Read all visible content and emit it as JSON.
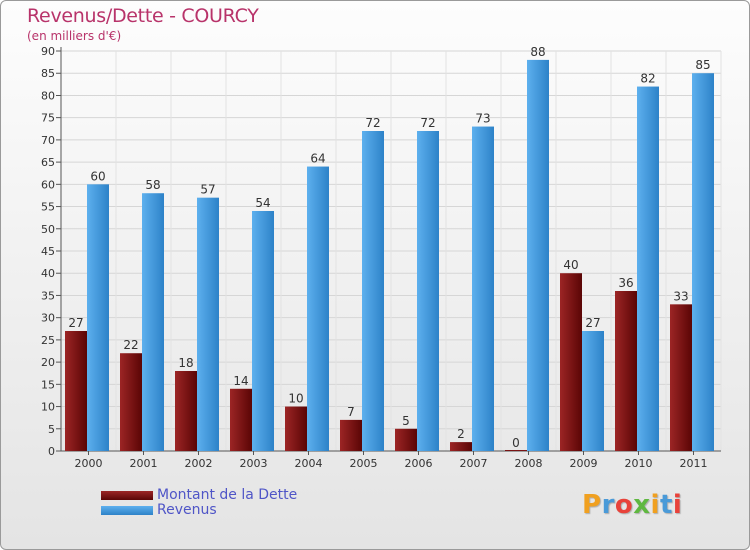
{
  "title": "Revenus/Dette - COURCY",
  "subtitle": "(en milliers d'€)",
  "logo": {
    "letters": [
      "P",
      "r",
      "o",
      "x",
      "i",
      "t",
      "i"
    ],
    "colors": [
      "#f0a020",
      "#4a9ad8",
      "#e8423a",
      "#5fb840",
      "#f0a020",
      "#4a9ad8",
      "#e8423a"
    ]
  },
  "chart_data": {
    "type": "bar",
    "categories": [
      "2000",
      "2001",
      "2002",
      "2003",
      "2004",
      "2005",
      "2006",
      "2007",
      "2008",
      "2009",
      "2010",
      "2011"
    ],
    "series": [
      {
        "name": "Montant de la Dette",
        "color": "#7a1414",
        "values": [
          27,
          22,
          18,
          14,
          10,
          7,
          5,
          2,
          0,
          40,
          36,
          33
        ]
      },
      {
        "name": "Revenus",
        "color": "#3a95dd",
        "values": [
          60,
          58,
          57,
          54,
          64,
          72,
          72,
          73,
          88,
          27,
          82,
          85
        ]
      }
    ],
    "ylim": [
      0,
      90
    ],
    "yticks": [
      0,
      5,
      10,
      15,
      20,
      25,
      30,
      35,
      40,
      45,
      50,
      55,
      60,
      65,
      70,
      75,
      80,
      85,
      90
    ],
    "grid": true,
    "legend": "bottom-left"
  }
}
